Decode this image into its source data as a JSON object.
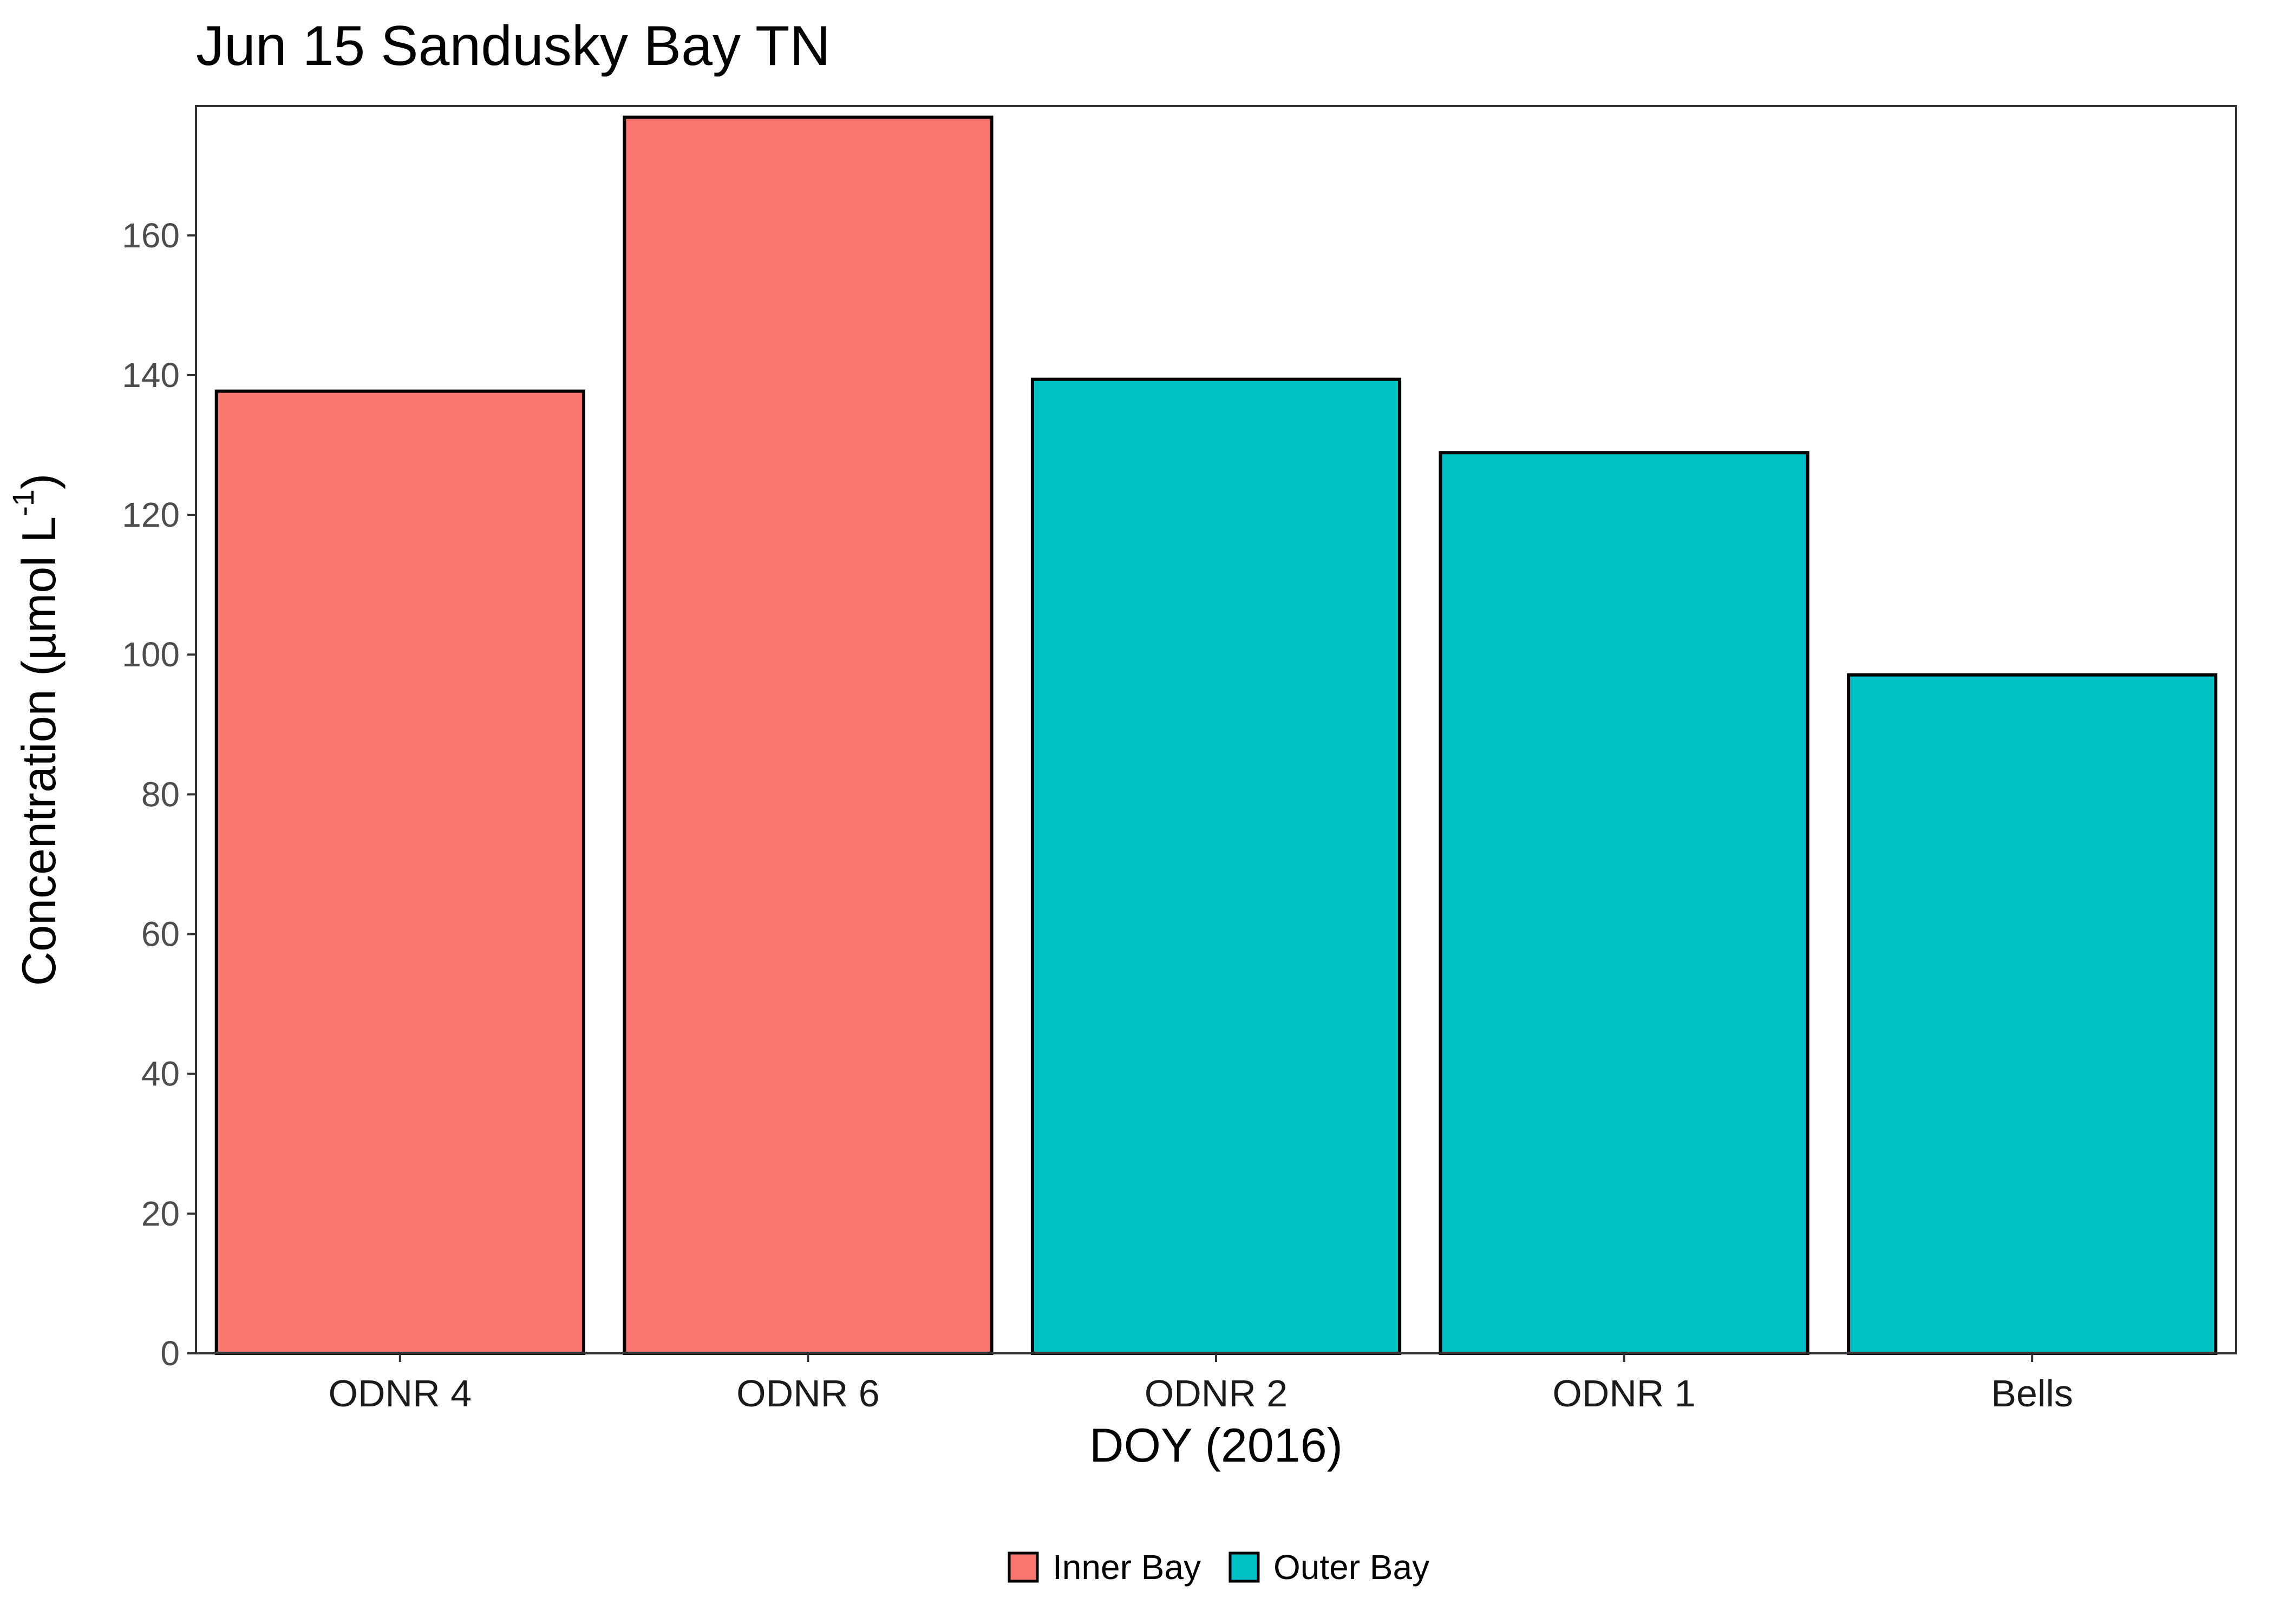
{
  "chart_data": {
    "type": "bar",
    "title": "Jun 15 Sandusky Bay TN",
    "xlabel": "DOY (2016)",
    "ylabel": {
      "main": "Concentration (µmol L",
      "superscript": "-1",
      "close": ")"
    },
    "categories": [
      "ODNR 4",
      "ODNR 6",
      "ODNR 2",
      "ODNR 1",
      "Bells"
    ],
    "values": [
      137.7,
      176.9,
      139.4,
      128.9,
      97.1
    ],
    "groups": [
      "Inner Bay",
      "Inner Bay",
      "Outer Bay",
      "Outer Bay",
      "Outer Bay"
    ],
    "ylim": [
      0,
      178.5
    ],
    "yticks": [
      0,
      20,
      40,
      60,
      80,
      100,
      120,
      140,
      160
    ],
    "grid": false,
    "legend": {
      "position": "bottom",
      "entries": [
        {
          "name": "Inner Bay",
          "color": "#F8766D"
        },
        {
          "name": "Outer Bay",
          "color": "#00BFC4"
        }
      ]
    },
    "bar_outline_color": "#000000",
    "axis_color": "#333333"
  }
}
